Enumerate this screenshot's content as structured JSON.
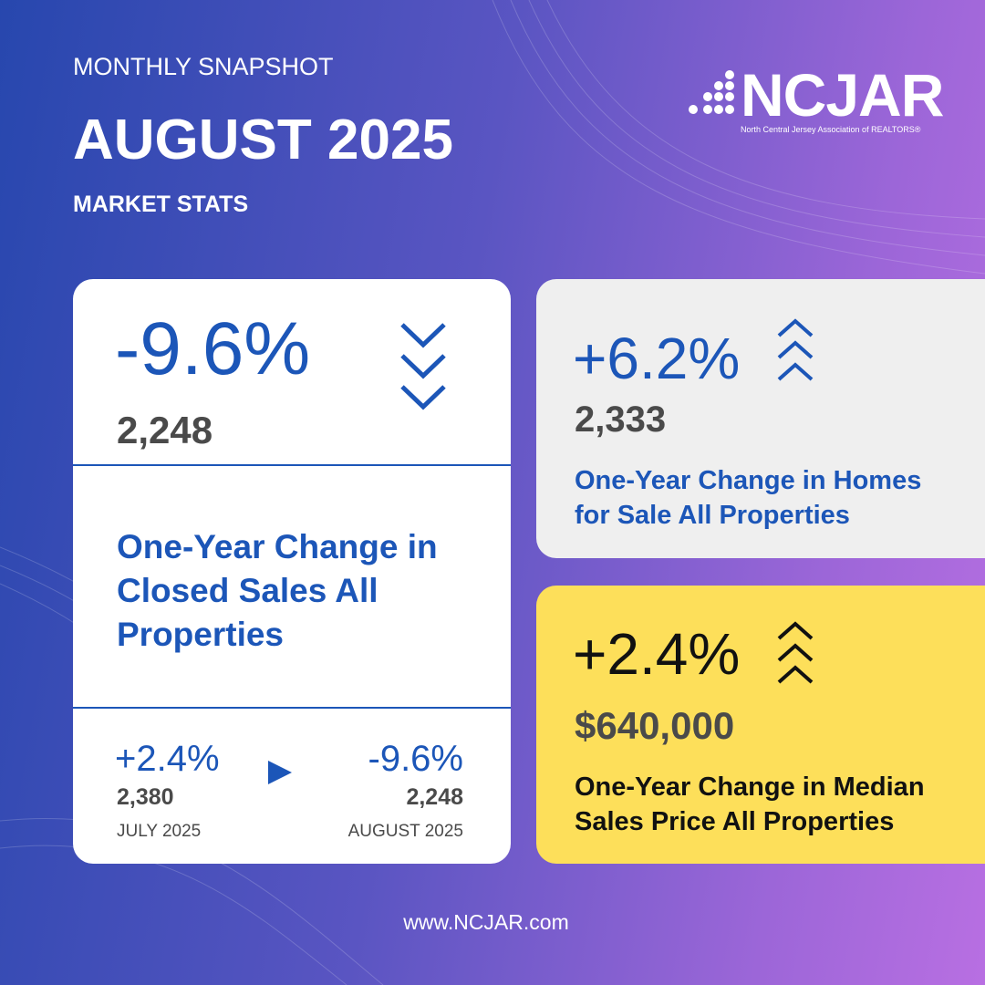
{
  "header": {
    "kicker": "MONTHLY SNAPSHOT",
    "title": "AUGUST 2025",
    "subtitle": "MARKET STATS"
  },
  "logo": {
    "name": "NCJAR",
    "tagline": "North Central Jersey Association of REALTORS®"
  },
  "cards": [
    {
      "change": "-9.6%",
      "count": "2,248",
      "label": "One-Year Change in Closed Sales All Properties",
      "comparison": [
        {
          "change": "+2.4%",
          "count": "2,380",
          "period": "JULY 2025"
        },
        {
          "change": "-9.6%",
          "count": "2,248",
          "period": "AUGUST 2025"
        }
      ]
    },
    {
      "change": "+6.2%",
      "count": "2,333",
      "label": "One-Year Change in Homes for Sale All Properties"
    },
    {
      "change": "+2.4%",
      "count": "$640,000",
      "label": "One-Year Change in Median Sales Price All Properties"
    }
  ],
  "footer": {
    "url": "www.NCJAR.com"
  }
}
